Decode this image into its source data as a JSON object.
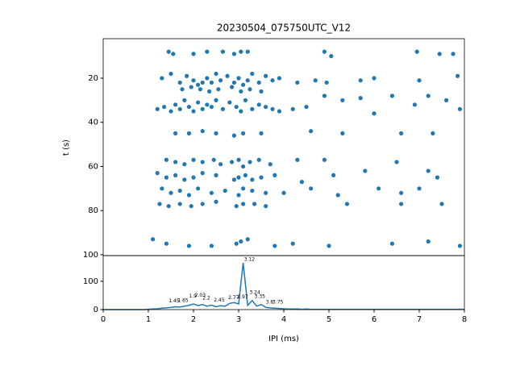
{
  "chart_data": [
    {
      "type": "scatter",
      "title": "20230504_075750UTC_V12",
      "ylabel": "t (s)",
      "color": "#1f77b4",
      "xlim": [
        0,
        8
      ],
      "ylim": [
        100.4,
        2.1
      ],
      "yticks": [
        20,
        40,
        60,
        80,
        100
      ],
      "x": [
        1.45,
        1.55,
        2.0,
        2.3,
        2.65,
        2.9,
        3.05,
        3.2,
        4.9,
        5.05,
        6.95,
        7.45,
        7.75,
        1.3,
        1.5,
        1.7,
        1.85,
        2.0,
        2.1,
        2.2,
        2.3,
        2.4,
        2.5,
        2.6,
        2.75,
        2.9,
        3.0,
        3.1,
        3.2,
        3.3,
        3.45,
        3.6,
        3.75,
        3.9,
        4.3,
        4.7,
        4.95,
        5.7,
        6.0,
        7.0,
        7.85,
        1.75,
        1.95,
        2.15,
        2.35,
        2.55,
        2.85,
        3.05,
        3.25,
        3.5,
        1.2,
        1.35,
        1.5,
        1.6,
        1.7,
        1.8,
        1.9,
        2.0,
        2.1,
        2.2,
        2.3,
        2.4,
        2.5,
        2.65,
        2.8,
        2.95,
        3.05,
        3.15,
        3.3,
        3.45,
        3.6,
        3.75,
        3.9,
        4.2,
        4.5,
        4.9,
        5.3,
        5.7,
        6.0,
        6.4,
        6.9,
        7.2,
        7.6,
        7.9,
        1.6,
        1.9,
        2.2,
        2.5,
        2.9,
        3.1,
        3.5,
        4.6,
        5.3,
        6.6,
        7.3,
        1.4,
        1.6,
        1.8,
        2.0,
        2.2,
        2.45,
        2.6,
        2.85,
        3.0,
        3.1,
        3.25,
        3.45,
        3.7,
        4.3,
        4.9,
        5.8,
        6.5,
        7.2,
        1.2,
        1.4,
        1.6,
        1.8,
        2.0,
        2.2,
        2.5,
        2.9,
        3.0,
        3.15,
        3.3,
        3.5,
        3.8,
        4.4,
        5.1,
        6.1,
        7.4,
        1.3,
        1.5,
        1.7,
        1.9,
        2.1,
        2.4,
        2.7,
        3.0,
        3.1,
        3.3,
        3.6,
        4.0,
        4.6,
        5.2,
        6.6,
        7.0,
        1.25,
        1.45,
        1.7,
        1.95,
        2.2,
        2.5,
        2.95,
        3.1,
        3.35,
        3.6,
        5.4,
        6.6,
        7.5,
        1.1,
        1.4,
        1.9,
        2.4,
        2.95,
        3.05,
        3.2,
        3.8,
        4.2,
        5.0,
        6.4,
        7.2,
        7.9
      ],
      "y": [
        8,
        9,
        9,
        8,
        8,
        9,
        8,
        8,
        8,
        10,
        8,
        9,
        9,
        20,
        18,
        22,
        19,
        21,
        23,
        22,
        20,
        22,
        18,
        21,
        19,
        22,
        20,
        23,
        21,
        18,
        22,
        19,
        21,
        20,
        22,
        21,
        22,
        21,
        20,
        21,
        19,
        25,
        24,
        25,
        26,
        25,
        24,
        26,
        25,
        26,
        34,
        33,
        35,
        32,
        34,
        30,
        33,
        35,
        31,
        34,
        32,
        33,
        30,
        34,
        31,
        33,
        35,
        30,
        34,
        32,
        33,
        34,
        35,
        34,
        33,
        28,
        30,
        29,
        36,
        28,
        32,
        28,
        30,
        34,
        45,
        45,
        44,
        45,
        46,
        45,
        45,
        44,
        45,
        45,
        45,
        57,
        58,
        59,
        57,
        58,
        57,
        59,
        58,
        57,
        60,
        58,
        57,
        59,
        57,
        57,
        62,
        58,
        62,
        63,
        65,
        64,
        66,
        65,
        63,
        64,
        66,
        65,
        64,
        66,
        65,
        64,
        67,
        64,
        70,
        65,
        70,
        72,
        71,
        73,
        70,
        72,
        71,
        73,
        70,
        71,
        72,
        72,
        70,
        73,
        72,
        70,
        77,
        78,
        77,
        78,
        77,
        76,
        78,
        77,
        77,
        78,
        77,
        77,
        77,
        93,
        95,
        96,
        96,
        95,
        94,
        93,
        96,
        95,
        96,
        95,
        94,
        96
      ]
    },
    {
      "type": "line",
      "xlabel": "IPI (ms)",
      "color": "#1f77b4",
      "xlim": [
        0,
        8
      ],
      "ylim": [
        0,
        191
      ],
      "xticks": [
        0,
        1,
        2,
        3,
        4,
        5,
        6,
        7,
        8
      ],
      "yticks": [
        0,
        100
      ],
      "x": [
        0,
        0.1,
        0.2,
        0.3,
        0.4,
        0.5,
        0.6,
        0.7,
        0.8,
        0.9,
        1,
        1.1,
        1.2,
        1.3,
        1.4,
        1.5,
        1.6,
        1.7,
        1.8,
        1.9,
        2,
        2.1,
        2.2,
        2.3,
        2.4,
        2.5,
        2.6,
        2.7,
        2.8,
        2.9,
        3,
        3.1,
        3.2,
        3.3,
        3.4,
        3.5,
        3.6,
        3.7,
        3.8,
        3.9,
        4,
        4.1,
        4.2,
        4.3,
        4.4,
        4.5,
        4.6,
        4.7,
        4.8,
        4.9,
        5,
        5.1,
        5.2,
        5.3,
        5.4,
        5.5,
        5.6,
        5.7,
        5.8,
        5.9,
        6,
        6.1,
        6.2,
        6.3,
        6.4,
        6.5,
        6.6,
        6.7,
        6.8,
        6.9,
        7,
        7.1,
        7.2,
        7.3,
        7.4,
        7.5,
        7.6,
        7.7,
        7.8,
        7.9,
        8
      ],
      "values": [
        0,
        0,
        0,
        0,
        0,
        0,
        0,
        0,
        0,
        0,
        1,
        2,
        3,
        5,
        6,
        8,
        10,
        9,
        12,
        15,
        20,
        14,
        18,
        12,
        16,
        10,
        14,
        12,
        22,
        25,
        20,
        165,
        15,
        32,
        12,
        18,
        8,
        6,
        5,
        4,
        3,
        2,
        2,
        2,
        1,
        2,
        1,
        1,
        1,
        1,
        1,
        1,
        1,
        1,
        1,
        1,
        1,
        1,
        1,
        1,
        1,
        1,
        1,
        1,
        1,
        1,
        1,
        1,
        1,
        1,
        1,
        1,
        1,
        1,
        1,
        1,
        1,
        1,
        1,
        1,
        1
      ],
      "peak_labels": [
        {
          "x": 3.12,
          "y": 165,
          "label": "3.12"
        },
        {
          "x": 3.24,
          "y": 48,
          "label": "3.24"
        },
        {
          "x": 3.35,
          "y": 34,
          "label": "3.35"
        },
        {
          "x": 2.97,
          "y": 33,
          "label": "2.97"
        },
        {
          "x": 2.77,
          "y": 30,
          "label": "2.77"
        },
        {
          "x": 2.03,
          "y": 38,
          "label": "2.03"
        },
        {
          "x": 1.9,
          "y": 36,
          "label": "1.9"
        },
        {
          "x": 2.2,
          "y": 28,
          "label": "2.2"
        },
        {
          "x": 2.45,
          "y": 22,
          "label": "2.45"
        },
        {
          "x": 1.45,
          "y": 18,
          "label": "1.45"
        },
        {
          "x": 1.65,
          "y": 20,
          "label": "1.65"
        },
        {
          "x": 3.6,
          "y": 14,
          "label": "3.6"
        },
        {
          "x": 3.75,
          "y": 14,
          "label": "3.75"
        }
      ]
    }
  ]
}
